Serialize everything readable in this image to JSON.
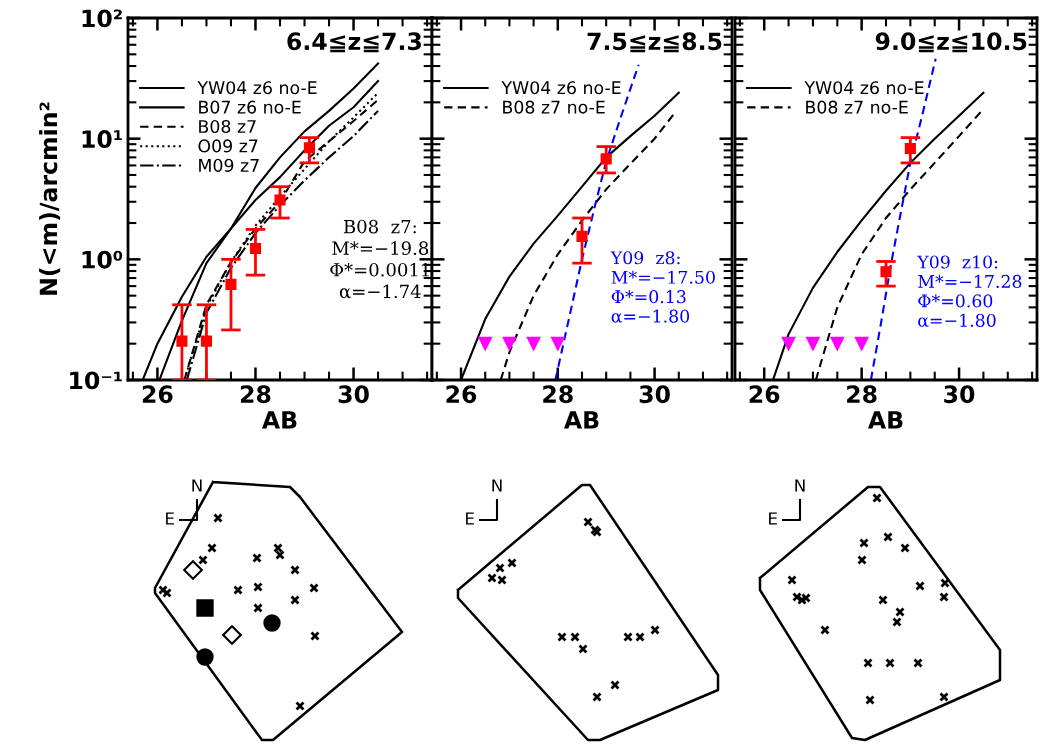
{
  "chart_data": [
    {
      "type": "line",
      "title": "6.4≦z≦7.3",
      "xlabel": "AB",
      "ylabel": "N(<m)/arcmin²",
      "log": "y",
      "xlim": [
        25.4,
        31.6
      ],
      "xticks": [
        26,
        28,
        30
      ],
      "ylim": [
        0.1,
        100
      ],
      "yticks": [
        {
          "value": 0.1,
          "label": "10⁻¹"
        },
        {
          "value": 1,
          "label": "10⁰"
        },
        {
          "value": 10,
          "label": "10¹"
        },
        {
          "value": 100,
          "label": "10²"
        }
      ],
      "legend": "top left",
      "grid": false,
      "annotations": [
        "B08  z7:\nM*=−19.8\nΦ*=0.0011\nα=−1.74"
      ],
      "series": [
        {
          "name": "YW04 z6 no-E",
          "color": "#000000",
          "line_style": "solid",
          "x": [
            25.7,
            26.0,
            26.5,
            27.0,
            27.5,
            28.0,
            28.5,
            29.0,
            29.5,
            30.0,
            30.5
          ],
          "values": [
            0.1,
            0.2,
            0.49,
            1.05,
            1.8,
            3.1,
            4.8,
            8.0,
            12.8,
            18.2,
            30
          ]
        },
        {
          "name": "B07 z6 no-E",
          "color": "#000000",
          "line_style": "solid",
          "x": [
            26.04,
            26.5,
            27.0,
            27.5,
            28.0,
            28.5,
            29.0,
            29.5,
            30.0,
            30.5
          ],
          "values": [
            0.1,
            0.31,
            0.93,
            1.8,
            3.9,
            7.0,
            11.5,
            17,
            26,
            42
          ]
        },
        {
          "name": "B08 z7",
          "color": "#000000",
          "line_style": "dashed",
          "x": [
            26.55,
            27.0,
            27.5,
            28.0,
            28.5,
            29.0,
            29.5,
            30.0,
            30.5
          ],
          "values": [
            0.1,
            0.42,
            0.95,
            1.8,
            3.0,
            6.5,
            9.5,
            14,
            21
          ]
        },
        {
          "name": "O09 z7",
          "color": "#000000",
          "line_style": "dotted",
          "x": [
            26.55,
            27.0,
            27.5,
            28.0,
            28.5,
            29.0,
            29.5,
            30.0,
            30.5
          ],
          "values": [
            0.1,
            0.4,
            0.95,
            1.9,
            3.3,
            5.6,
            9.5,
            15,
            24
          ]
        },
        {
          "name": "M09 z7",
          "color": "#000000",
          "line_style": "dashdot",
          "x": [
            26.6,
            27.0,
            27.5,
            28.0,
            28.5,
            29.0,
            29.5,
            30.0,
            30.5
          ],
          "values": [
            0.1,
            0.36,
            0.85,
            1.65,
            2.8,
            4.5,
            7,
            10.5,
            17
          ]
        },
        {
          "type": "scatter",
          "marker": "square",
          "color": "#ff0000",
          "x": [
            26.5,
            27.0,
            27.5,
            28.0,
            28.5,
            29.1
          ],
          "values": [
            0.21,
            0.21,
            0.62,
            1.23,
            3.1,
            8.4
          ],
          "errors": [
            [
              0.1,
              0.42
            ],
            [
              0.1,
              0.42
            ],
            [
              0.26,
              1.0
            ],
            [
              0.74,
              1.77
            ],
            [
              2.2,
              4.0
            ],
            [
              6.3,
              10.2
            ]
          ]
        }
      ]
    },
    {
      "type": "line",
      "title": "7.5≦z≦8.5",
      "xlabel": "AB",
      "log": "y",
      "xlim": [
        25.4,
        31.6
      ],
      "xticks": [
        26,
        28,
        30
      ],
      "ylim": [
        0.1,
        100
      ],
      "yticks": [
        {
          "value": 0.1,
          "label": null
        },
        {
          "value": 1,
          "label": null
        },
        {
          "value": 10,
          "label": null
        },
        {
          "value": 100,
          "label": null
        }
      ],
      "tick_labels": "x",
      "legend": "top left",
      "grid": false,
      "series": [
        {
          "name": "YW04 z6 no-E",
          "color": "#000000",
          "line_style": "solid",
          "x": [
            26.0,
            26.5,
            27.0,
            27.5,
            28.0,
            28.5,
            29.0,
            29.5,
            30.0,
            30.5
          ],
          "values": [
            0.1,
            0.32,
            0.72,
            1.35,
            2.3,
            4.0,
            7.0,
            10.5,
            15.5,
            24
          ]
        },
        {
          "name": "B08 z7 no-E",
          "color": "#000000",
          "line_style": "dashed",
          "x": [
            26.82,
            27.0,
            27.5,
            28.0,
            28.5,
            29.0,
            29.5,
            30.0,
            30.4
          ],
          "values": [
            0.1,
            0.17,
            0.5,
            1.1,
            2.1,
            3.8,
            6.2,
            10,
            16
          ]
        },
        {
          "name": "Y09  z8:\nM*=−17.50\nΦ*=0.13\nα=−1.80",
          "color": "#0000ff",
          "line_style": "dashed",
          "x": [
            27.95,
            28.25,
            28.5,
            28.75,
            29.0,
            29.3,
            29.67
          ],
          "values": [
            0.1,
            0.35,
            1.0,
            2.6,
            6.5,
            15,
            41
          ]
        },
        {
          "type": "scatter",
          "marker": "square",
          "color": "#ff0000",
          "x": [
            28.5,
            29.0
          ],
          "values": [
            1.55,
            6.8
          ],
          "errors": [
            [
              0.93,
              2.2
            ],
            [
              5.2,
              8.6
            ]
          ]
        },
        {
          "type": "scatter",
          "marker": "triangle",
          "color": "#ff00ff",
          "x": [
            26.5,
            27.0,
            27.5,
            28.0
          ],
          "values": [
            0.2,
            0.2,
            0.2,
            0.2
          ]
        }
      ]
    },
    {
      "type": "line",
      "title": "9.0≦z≦10.5",
      "xlabel": "AB",
      "log": "y",
      "xlim": [
        25.4,
        31.6
      ],
      "xticks": [
        26,
        28,
        30
      ],
      "ylim": [
        0.1,
        100
      ],
      "yticks": [
        {
          "value": 0.1,
          "label": null
        },
        {
          "value": 1,
          "label": null
        },
        {
          "value": 10,
          "label": null
        },
        {
          "value": 100,
          "label": null
        }
      ],
      "tick_labels": "x",
      "legend": "top left",
      "grid": false,
      "series": [
        {
          "name": "YW04 z6 no-E",
          "color": "#000000",
          "line_style": "solid",
          "x": [
            26.18,
            26.5,
            27.0,
            27.5,
            28.0,
            28.5,
            29.0,
            29.5,
            30.0,
            30.5
          ],
          "values": [
            0.1,
            0.24,
            0.58,
            1.15,
            2.1,
            3.7,
            6.3,
            10,
            15.5,
            24
          ]
        },
        {
          "name": "B08 z7 no-E",
          "color": "#000000",
          "line_style": "dashed",
          "x": [
            27.06,
            27.5,
            28.0,
            28.5,
            29.0,
            29.5,
            30.0,
            30.5
          ],
          "values": [
            0.1,
            0.4,
            1.1,
            2.2,
            3.8,
            6.3,
            10.5,
            17.6
          ]
        },
        {
          "name": "Y09  z10:\nM*=−17.28\nΦ*=0.60\nα=−1.80",
          "color": "#0000ff",
          "line_style": "dashed",
          "x": [
            28.19,
            28.4,
            28.6,
            28.8,
            29.0,
            29.25,
            29.52
          ],
          "values": [
            0.1,
            0.3,
            0.9,
            2.4,
            6.3,
            16,
            46
          ]
        },
        {
          "type": "scatter",
          "marker": "square",
          "color": "#ff0000",
          "x": [
            28.5,
            29.0
          ],
          "values": [
            0.79,
            8.3
          ],
          "errors": [
            [
              0.6,
              0.96
            ],
            [
              6.3,
              10.2
            ]
          ]
        },
        {
          "type": "scatter",
          "marker": "triangle",
          "color": "#ff00ff",
          "x": [
            26.5,
            27.0,
            27.5,
            28.0
          ],
          "values": [
            0.2,
            0.2,
            0.2,
            0.2
          ]
        }
      ]
    },
    {
      "type": "other",
      "annotations": [
        "N",
        "E"
      ]
    },
    {
      "type": "other",
      "annotations": [
        "N",
        "E"
      ]
    },
    {
      "type": "other",
      "annotations": [
        "N",
        "E"
      ]
    }
  ]
}
